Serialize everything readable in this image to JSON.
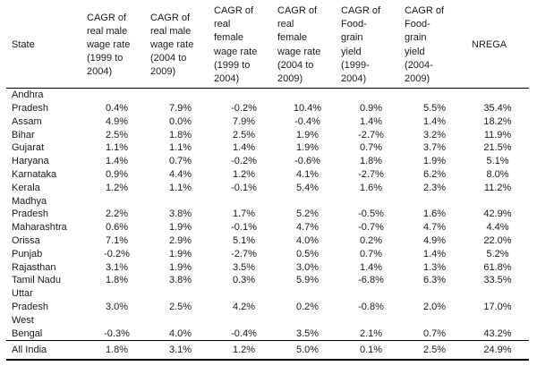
{
  "table": {
    "columns": [
      "State",
      "CAGR of\nreal male\nwage rate\n(1999 to\n2004)",
      "CAGR of\nreal male\nwage rate\n(2004 to\n2009)",
      "CAGR of\nreal\nfemale\nwage rate\n(1999 to\n2004)",
      "CAGR of\nreal\nfemale\nwage rate\n(2004 to\n2009)",
      "CAGR of\nFood-\ngrain\nyield\n(1999-\n2004)",
      "CAGR of\nFood-\ngrain\nyield\n(2004-\n2009)",
      "NREGA"
    ],
    "rows": [
      {
        "state": "Andhra\nPradesh",
        "values": [
          "0.4%",
          "7.9%",
          "-0.2%",
          "10.4%",
          "0.9%",
          "5.5%",
          "35.4%"
        ]
      },
      {
        "state": "Assam",
        "values": [
          "4.9%",
          "0.0%",
          "7.9%",
          "-0.4%",
          "1.4%",
          "1.4%",
          "18.2%"
        ]
      },
      {
        "state": "Bihar",
        "values": [
          "2.5%",
          "1.8%",
          "2.5%",
          "1.9%",
          "-2.7%",
          "3.2%",
          "11.9%"
        ]
      },
      {
        "state": "Gujarat",
        "values": [
          "1.1%",
          "1.1%",
          "1.4%",
          "1.9%",
          "0.7%",
          "3.7%",
          "21.5%"
        ]
      },
      {
        "state": "Haryana",
        "values": [
          "1.4%",
          "0.7%",
          "-0.2%",
          "-0.6%",
          "1.8%",
          "1.9%",
          "5.1%"
        ]
      },
      {
        "state": "Karnataka",
        "values": [
          "0.9%",
          "4.4%",
          "1.2%",
          "4.1%",
          "-2.7%",
          "6.2%",
          "8.0%"
        ]
      },
      {
        "state": "Kerala",
        "values": [
          "1.2%",
          "1.1%",
          "-0.1%",
          "5.4%",
          "1.6%",
          "2.3%",
          "11.2%"
        ]
      },
      {
        "state": "Madhya\nPradesh",
        "values": [
          "2.2%",
          "3.8%",
          "1.7%",
          "5.2%",
          "-0.5%",
          "1.6%",
          "42.9%"
        ]
      },
      {
        "state": "Maharashtra",
        "values": [
          "0.6%",
          "1.9%",
          "-0.1%",
          "4.7%",
          "-0.7%",
          "4.7%",
          "4.4%"
        ]
      },
      {
        "state": "Orissa",
        "values": [
          "7.1%",
          "2.9%",
          "5.1%",
          "4.0%",
          "0.2%",
          "4.9%",
          "22.0%"
        ]
      },
      {
        "state": "Punjab",
        "values": [
          "-0.2%",
          "1.9%",
          "-2.7%",
          "0.5%",
          "0.7%",
          "1.4%",
          "5.2%"
        ]
      },
      {
        "state": "Rajasthan",
        "values": [
          "3.1%",
          "1.9%",
          "3.5%",
          "3.0%",
          "1.4%",
          "1.3%",
          "61.8%"
        ]
      },
      {
        "state": "Tamil Nadu",
        "values": [
          "1.8%",
          "3.8%",
          "0.3%",
          "5.9%",
          "-6.8%",
          "6.3%",
          "33.5%"
        ]
      },
      {
        "state": "Uttar\nPradesh",
        "values": [
          "3.0%",
          "2.5%",
          "4.2%",
          "0.2%",
          "-0.8%",
          "2.0%",
          "17.0%"
        ]
      },
      {
        "state": "West\nBengal",
        "values": [
          "-0.3%",
          "4.0%",
          "-0.4%",
          "3.5%",
          "2.1%",
          "0.7%",
          "43.2%"
        ]
      },
      {
        "state": "All India",
        "values": [
          "1.8%",
          "3.1%",
          "1.2%",
          "5.0%",
          "0.1%",
          "2.5%",
          "24.9%"
        ],
        "is_total": true
      }
    ]
  },
  "colors": {
    "background": "#ffffff",
    "text": "#1a1a1a",
    "rule": "#000000"
  }
}
